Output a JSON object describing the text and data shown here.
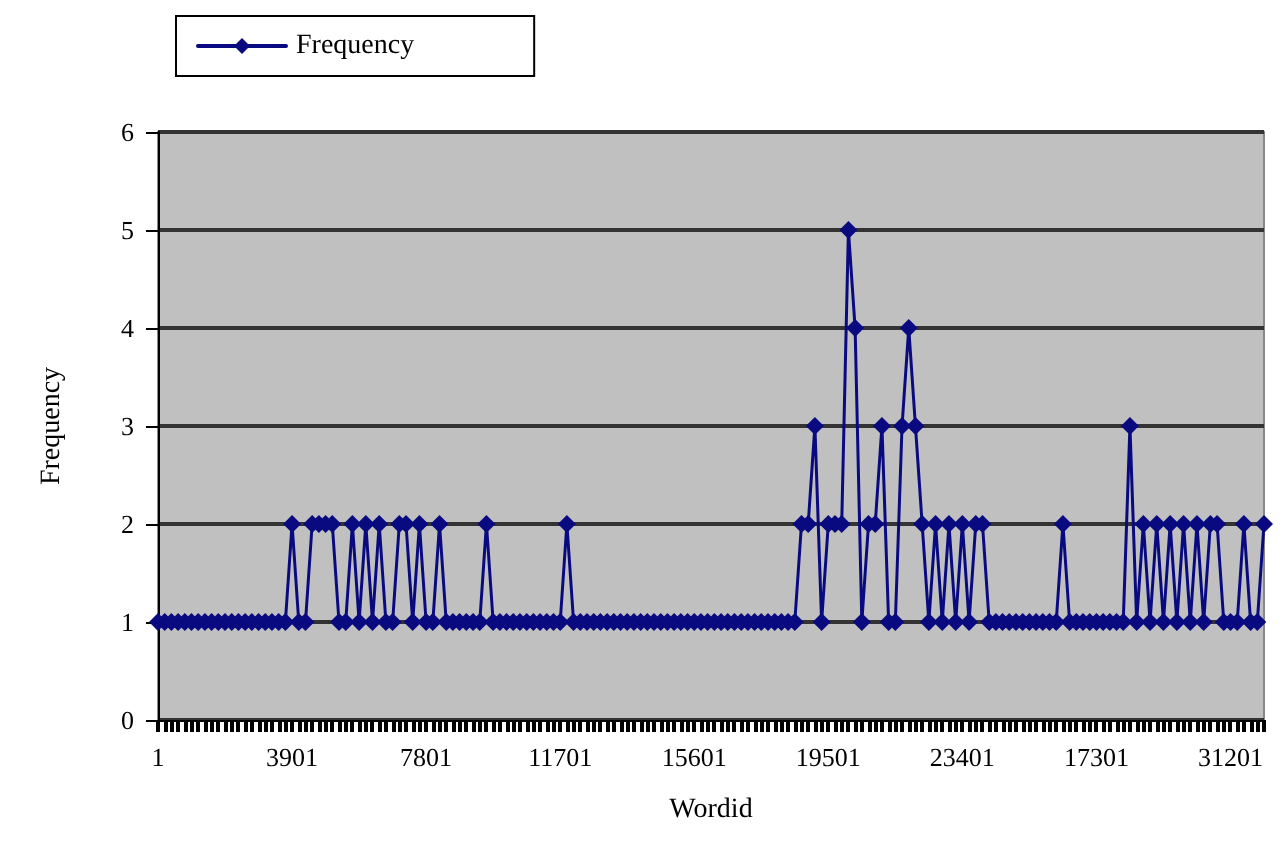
{
  "chart_data": {
    "type": "line",
    "xlabel": "Wordid",
    "ylabel": "Frequency",
    "categories": [
      "1",
      null,
      null,
      null,
      null,
      null,
      null,
      null,
      null,
      null,
      null,
      null,
      null,
      null,
      null,
      null,
      null,
      null,
      null,
      null,
      "3901",
      null,
      null,
      null,
      null,
      null,
      null,
      null,
      null,
      null,
      null,
      null,
      null,
      null,
      null,
      null,
      null,
      null,
      null,
      null,
      "7801",
      null,
      null,
      null,
      null,
      null,
      null,
      null,
      null,
      null,
      null,
      null,
      null,
      null,
      null,
      null,
      null,
      null,
      null,
      null,
      "11701",
      null,
      null,
      null,
      null,
      null,
      null,
      null,
      null,
      null,
      null,
      null,
      null,
      null,
      null,
      null,
      null,
      null,
      null,
      null,
      "15601",
      null,
      null,
      null,
      null,
      null,
      null,
      null,
      null,
      null,
      null,
      null,
      null,
      null,
      null,
      null,
      null,
      null,
      null,
      null,
      "19501",
      null,
      null,
      null,
      null,
      null,
      null,
      null,
      null,
      null,
      null,
      null,
      null,
      null,
      null,
      null,
      null,
      null,
      null,
      null,
      "23401",
      null,
      null,
      null,
      null,
      null,
      null,
      null,
      null,
      null,
      null,
      null,
      null,
      null,
      null,
      null,
      null,
      null,
      null,
      null,
      "17301",
      null,
      null,
      null,
      null,
      null,
      null,
      null,
      null,
      null,
      null,
      null,
      null,
      null,
      null,
      null,
      null,
      null,
      null,
      null,
      "31201",
      null,
      null,
      null,
      null,
      null
    ],
    "series": [
      {
        "name": "Frequency",
        "color": "#0a0a80",
        "values": [
          1,
          1,
          1,
          1,
          1,
          1,
          1,
          1,
          1,
          1,
          1,
          1,
          1,
          1,
          1,
          1,
          1,
          1,
          1,
          1,
          2,
          1,
          1,
          2,
          2,
          2,
          2,
          1,
          1,
          2,
          1,
          2,
          1,
          2,
          1,
          1,
          2,
          2,
          1,
          2,
          1,
          1,
          2,
          1,
          1,
          1,
          1,
          1,
          1,
          2,
          1,
          1,
          1,
          1,
          1,
          1,
          1,
          1,
          1,
          1,
          1,
          2,
          1,
          1,
          1,
          1,
          1,
          1,
          1,
          1,
          1,
          1,
          1,
          1,
          1,
          1,
          1,
          1,
          1,
          1,
          1,
          1,
          1,
          1,
          1,
          1,
          1,
          1,
          1,
          1,
          1,
          1,
          1,
          1,
          1,
          1,
          2,
          2,
          3,
          1,
          2,
          2,
          2,
          5,
          4,
          1,
          2,
          2,
          3,
          1,
          1,
          3,
          4,
          3,
          2,
          1,
          2,
          1,
          2,
          1,
          2,
          1,
          2,
          2,
          1,
          1,
          1,
          1,
          1,
          1,
          1,
          1,
          1,
          1,
          1,
          2,
          1,
          1,
          1,
          1,
          1,
          1,
          1,
          1,
          1,
          3,
          1,
          2,
          1,
          2,
          1,
          2,
          1,
          2,
          1,
          2,
          1,
          2,
          2,
          1,
          1,
          1,
          2,
          1,
          1,
          2
        ]
      }
    ],
    "ylim": [
      0,
      6
    ],
    "yticks": [
      0,
      1,
      2,
      3,
      4,
      5,
      6
    ],
    "grid": "y",
    "legend": "top left",
    "marker": "diamond",
    "line_style": "solid"
  }
}
